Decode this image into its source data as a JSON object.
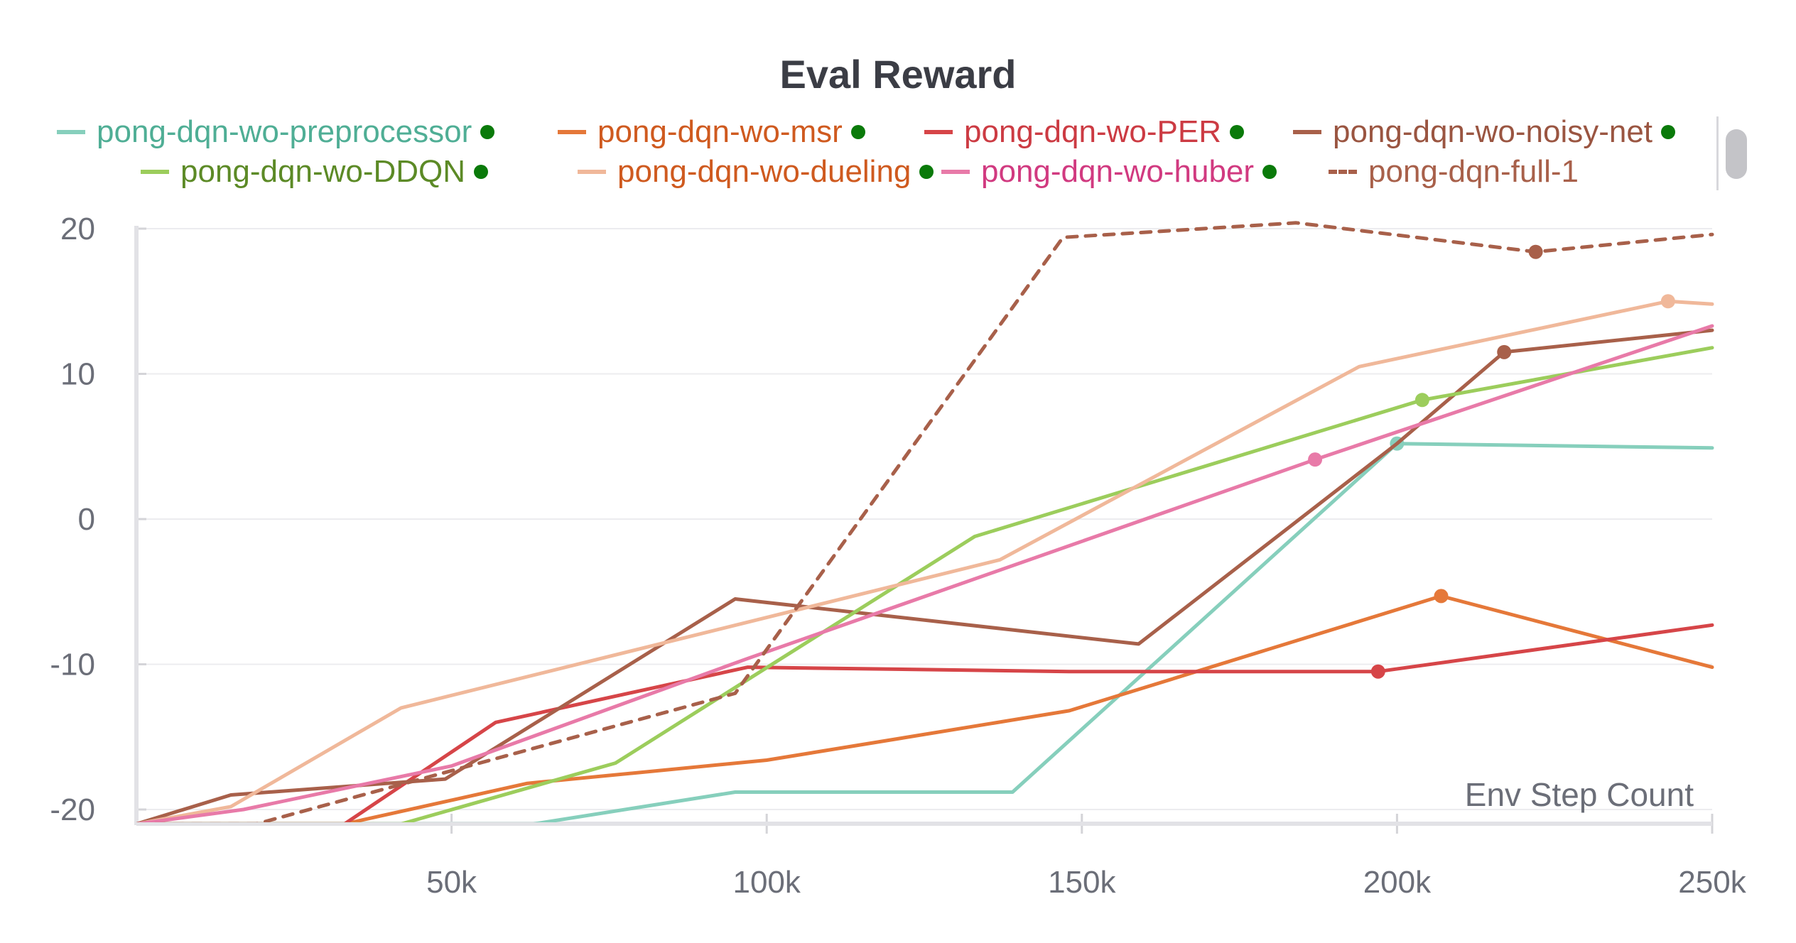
{
  "chart_data": {
    "type": "line",
    "title": "Eval Reward",
    "xlabel": "Env Step Count",
    "ylabel": "",
    "xlim": [
      0,
      250000
    ],
    "ylim": [
      -20.8,
      20
    ],
    "x_ticks": [
      50000,
      100000,
      150000,
      200000,
      250000
    ],
    "x_tick_labels": [
      "50k",
      "100k",
      "150k",
      "200k",
      "250k"
    ],
    "y_ticks": [
      20,
      10,
      0,
      -10,
      -20
    ],
    "y_tick_labels": [
      "20",
      "10",
      "0",
      "-10",
      "-20"
    ],
    "grid": true,
    "legend_position": "top",
    "series": [
      {
        "name": "pong-dqn-wo-preprocessor",
        "color": "#86cfbc",
        "label_color": "#4fae95",
        "dashed": false,
        "has_dot": true,
        "x": [
          0,
          63000,
          95000,
          139000,
          200000,
          250000
        ],
        "y": [
          -21,
          -21,
          -18.8,
          -18.8,
          5.2,
          4.9
        ],
        "marker_x": [
          200000
        ]
      },
      {
        "name": "pong-dqn-wo-msr",
        "color": "#e57839",
        "label_color": "#cf5a1f",
        "dashed": false,
        "has_dot": true,
        "x": [
          0,
          33000,
          62000,
          100000,
          148000,
          207000,
          250000
        ],
        "y": [
          -21,
          -21,
          -18.2,
          -16.6,
          -13.2,
          -5.3,
          -10.2
        ],
        "marker_x": [
          207000
        ]
      },
      {
        "name": "pong-dqn-wo-PER",
        "color": "#d64548",
        "label_color": "#cc3b43",
        "dashed": false,
        "has_dot": true,
        "x": [
          0,
          33000,
          57000,
          97000,
          148000,
          197000,
          250000
        ],
        "y": [
          -21,
          -21,
          -14,
          -10.2,
          -10.5,
          -10.5,
          -7.3
        ],
        "marker_x": [
          197000
        ]
      },
      {
        "name": "pong-dqn-wo-noisy-net",
        "color": "#a8604a",
        "label_color": "#9a5541",
        "dashed": false,
        "has_dot": true,
        "x": [
          0,
          15000,
          49000,
          95000,
          159000,
          200000,
          217000,
          250000
        ],
        "y": [
          -21,
          -19,
          -17.9,
          -5.5,
          -8.6,
          5.2,
          11.5,
          13
        ],
        "marker_x": [
          217000
        ]
      },
      {
        "name": "pong-dqn-wo-DDQN",
        "color": "#9ccd5c",
        "label_color": "#5c8a26",
        "dashed": false,
        "has_dot": true,
        "x": [
          0,
          42000,
          76000,
          133000,
          204000,
          250000
        ],
        "y": [
          -21,
          -21,
          -16.8,
          -1.2,
          8.2,
          11.8
        ],
        "marker_x": [
          204000
        ]
      },
      {
        "name": "pong-dqn-wo-dueling",
        "color": "#f0b89a",
        "label_color": "#cf5a1f",
        "dashed": false,
        "has_dot": true,
        "x": [
          0,
          15000,
          42000,
          137000,
          194000,
          243000,
          250000
        ],
        "y": [
          -21,
          -19.8,
          -13,
          -2.8,
          10.5,
          15,
          14.8
        ],
        "marker_x": [
          243000
        ]
      },
      {
        "name": "pong-dqn-wo-huber",
        "color": "#e87aa8",
        "label_color": "#d13a80",
        "dashed": false,
        "has_dot": true,
        "x": [
          0,
          17000,
          50000,
          97000,
          187000,
          250000
        ],
        "y": [
          -21,
          -20,
          -17,
          -9.6,
          4.1,
          13.3
        ],
        "marker_x": [
          187000
        ]
      },
      {
        "name": "pong-dqn-full-1",
        "color": "#a8604a",
        "label_color": "#a8604a",
        "dashed": true,
        "has_dot": false,
        "x": [
          0,
          19000,
          95000,
          147000,
          184000,
          222000,
          250000
        ],
        "y": [
          -21,
          -21,
          -12,
          19.4,
          20.4,
          18.4,
          19.6
        ],
        "marker_x": [
          222000
        ]
      }
    ]
  }
}
